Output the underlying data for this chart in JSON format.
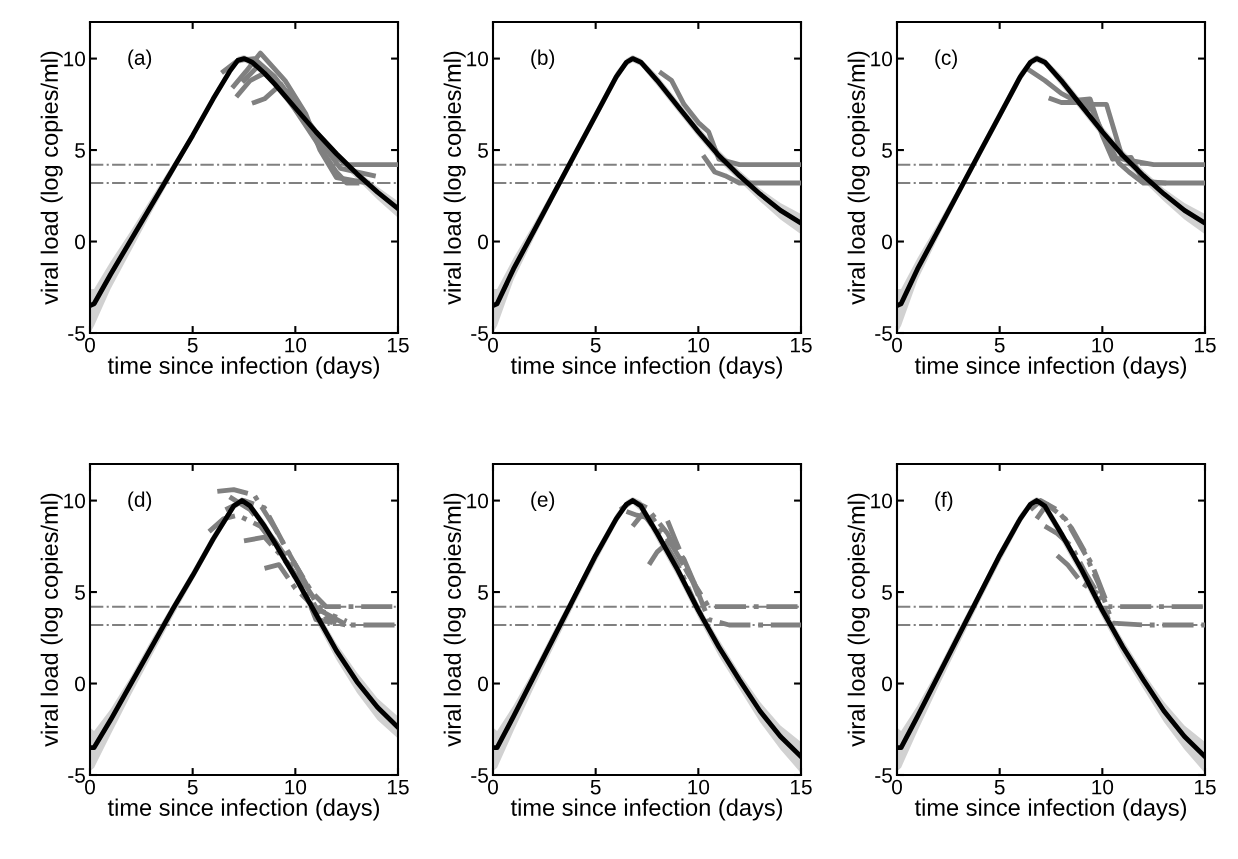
{
  "chart_data": [
    {
      "type": "line",
      "xlabel": "time since infection (days)",
      "ylabel": "viral load (log copies/ml)",
      "annotations": [
        "(a)"
      ],
      "xlim": [
        0,
        15
      ],
      "ylim": [
        -5,
        12
      ],
      "xticks": [
        0,
        5,
        10,
        15
      ],
      "yticks": [
        -5,
        0,
        5,
        10
      ],
      "ref_lines": [
        {
          "axis": "y",
          "value": 4.2,
          "color": "#808080",
          "line_style": "dashdot"
        },
        {
          "axis": "y",
          "value": 3.2,
          "color": "#808080",
          "line_style": "dashdot"
        }
      ],
      "series": [
        {
          "color": "#808080",
          "x": [
            6.5,
            7.2,
            8,
            9,
            10,
            11,
            12,
            12.5,
            15
          ],
          "values": [
            9.3,
            9.9,
            10.0,
            9.0,
            7.5,
            6.0,
            4.6,
            4.2,
            4.2
          ]
        },
        {
          "color": "#808080",
          "x": [
            7.5,
            8.2,
            9,
            10,
            11,
            12,
            12.5,
            13
          ],
          "values": [
            8.8,
            9.6,
            8.8,
            7.2,
            5.5,
            3.8,
            3.2,
            3.2
          ]
        },
        {
          "color": "#808080",
          "x": [
            8,
            8.5,
            9.3,
            10,
            10.8,
            11.5
          ],
          "values": [
            7.6,
            7.8,
            8.6,
            7.5,
            6.2,
            5.2
          ]
        },
        {
          "color": "#808080",
          "x": [
            7,
            7.6,
            8.3,
            9.5,
            10.5,
            11.2,
            12,
            13.5
          ],
          "values": [
            8.5,
            9.3,
            10.3,
            8.8,
            7.0,
            5.0,
            3.5,
            3.2
          ]
        },
        {
          "color": "#808080",
          "x": [
            7.2,
            7.8,
            8.5,
            9.8,
            11,
            12.2,
            13.8
          ],
          "values": [
            8.0,
            8.8,
            9.2,
            8.0,
            5.8,
            4.0,
            3.6
          ]
        },
        {
          "color": "#000000",
          "x": [
            0,
            0.2,
            1,
            2,
            3,
            4,
            5,
            6,
            6.8,
            7.2,
            7.5,
            7.9,
            8.5,
            9,
            10,
            11,
            12,
            13,
            14,
            15
          ],
          "values": [
            -3.5,
            -3.4,
            -1.8,
            0.1,
            2.0,
            3.9,
            5.8,
            7.8,
            9.3,
            9.9,
            10,
            9.8,
            9.2,
            8.6,
            7.3,
            6.0,
            4.8,
            3.7,
            2.7,
            1.8
          ],
          "lower": [
            -5,
            -4.6,
            -2.6,
            -0.5,
            1.6,
            3.6,
            5.6,
            7.6,
            9.1,
            9.7,
            9.8,
            9.6,
            9.0,
            8.4,
            7.0,
            5.7,
            4.5,
            3.4,
            2.3,
            1.3
          ],
          "upper": [
            -2.6,
            -2.6,
            -1.1,
            0.6,
            2.4,
            4.2,
            6.0,
            8.0,
            9.5,
            10.1,
            10.2,
            10.0,
            9.4,
            8.8,
            7.5,
            6.2,
            5.0,
            3.9,
            3.0,
            2.2
          ]
        }
      ]
    },
    {
      "type": "line",
      "xlabel": "time since infection (days)",
      "ylabel": "viral load (log copies/ml)",
      "annotations": [
        "(b)"
      ],
      "xlim": [
        0,
        15
      ],
      "ylim": [
        -5,
        12
      ],
      "xticks": [
        0,
        5,
        10,
        15
      ],
      "yticks": [
        -5,
        0,
        5,
        10
      ],
      "ref_lines": [
        {
          "axis": "y",
          "value": 4.2,
          "color": "#808080",
          "line_style": "dashdot"
        },
        {
          "axis": "y",
          "value": 3.2,
          "color": "#808080",
          "line_style": "dashdot"
        }
      ],
      "series": [
        {
          "color": "#808080",
          "x": [
            8.2,
            8.7,
            9.3,
            10,
            10.5,
            11,
            12,
            15
          ],
          "values": [
            9.2,
            8.8,
            7.5,
            6.5,
            6.0,
            4.5,
            4.2,
            4.2
          ]
        },
        {
          "color": "#808080",
          "x": [
            10.3,
            10.8,
            11.3,
            12,
            13,
            15
          ],
          "values": [
            4.6,
            3.8,
            3.6,
            3.2,
            3.2,
            3.2
          ]
        },
        {
          "color": "#000000",
          "x": [
            0,
            0.2,
            1,
            2,
            3,
            4,
            5,
            6,
            6.5,
            6.8,
            7.2,
            8,
            9,
            10,
            11,
            12,
            13,
            14,
            15
          ],
          "values": [
            -3.5,
            -3.4,
            -1.5,
            0.6,
            2.7,
            4.8,
            6.9,
            9.0,
            9.8,
            10,
            9.8,
            8.8,
            7.4,
            6.0,
            4.7,
            3.6,
            2.6,
            1.7,
            1.0
          ],
          "lower": [
            -5,
            -4.6,
            -2.1,
            0.2,
            2.4,
            4.5,
            6.6,
            8.7,
            9.6,
            9.8,
            9.6,
            8.5,
            7.1,
            5.7,
            4.4,
            3.3,
            2.2,
            1.2,
            0.4
          ],
          "upper": [
            -2.6,
            -2.6,
            -0.9,
            1.0,
            3.0,
            5.1,
            7.2,
            9.3,
            10.0,
            10.2,
            10.0,
            9.1,
            7.7,
            6.3,
            5.0,
            3.9,
            2.9,
            2.1,
            1.5
          ]
        }
      ]
    },
    {
      "type": "line",
      "xlabel": "time since infection (days)",
      "ylabel": "viral load (log copies/ml)",
      "annotations": [
        "(c)"
      ],
      "xlim": [
        0,
        15
      ],
      "ylim": [
        -5,
        12
      ],
      "xticks": [
        0,
        5,
        10,
        15
      ],
      "yticks": [
        -5,
        0,
        5,
        10
      ],
      "ref_lines": [
        {
          "axis": "y",
          "value": 4.2,
          "color": "#808080",
          "line_style": "dashdot"
        },
        {
          "axis": "y",
          "value": 3.2,
          "color": "#808080",
          "line_style": "dashdot"
        }
      ],
      "series": [
        {
          "color": "#808080",
          "x": [
            6.4,
            7.2,
            8,
            8.5,
            9.5,
            10.2,
            11,
            12.5,
            15
          ],
          "values": [
            9.4,
            8.8,
            8.1,
            7.8,
            7.5,
            7.5,
            4.5,
            4.2,
            4.2
          ]
        },
        {
          "color": "#808080",
          "x": [
            7.5,
            8,
            8.8,
            9.5,
            10,
            10.8,
            11.3,
            12,
            13,
            15
          ],
          "values": [
            7.8,
            7.6,
            7.6,
            7.2,
            6.0,
            4.3,
            3.8,
            3.2,
            3.2,
            3.2
          ]
        },
        {
          "color": "#808080",
          "x": [
            8.5,
            9.4,
            10,
            10.5,
            11.4,
            12,
            13
          ],
          "values": [
            7.7,
            7.8,
            5.8,
            4.5,
            4.6,
            3.3,
            3.2
          ]
        },
        {
          "color": "#000000",
          "x": [
            0,
            0.2,
            1,
            2,
            3,
            4,
            5,
            6,
            6.5,
            6.8,
            7.2,
            8,
            9,
            10,
            11,
            12,
            13,
            14,
            15
          ],
          "values": [
            -3.5,
            -3.4,
            -1.5,
            0.6,
            2.7,
            4.8,
            6.9,
            9.0,
            9.8,
            10,
            9.8,
            8.8,
            7.4,
            6.0,
            4.7,
            3.6,
            2.6,
            1.7,
            1.0
          ],
          "lower": [
            -5,
            -4.6,
            -2.1,
            0.2,
            2.4,
            4.5,
            6.6,
            8.7,
            9.6,
            9.8,
            9.6,
            8.5,
            7.1,
            5.7,
            4.4,
            3.3,
            2.2,
            1.2,
            0.4
          ],
          "upper": [
            -2.6,
            -2.6,
            -0.9,
            1.0,
            3.0,
            5.1,
            7.2,
            9.3,
            10.0,
            10.2,
            10.0,
            9.1,
            7.7,
            6.3,
            5.0,
            3.9,
            2.9,
            2.1,
            1.5
          ]
        }
      ]
    },
    {
      "type": "line",
      "xlabel": "time since infection (days)",
      "ylabel": "viral load (log copies/ml)",
      "annotations": [
        "(d)"
      ],
      "xlim": [
        0,
        15
      ],
      "ylim": [
        -5,
        12
      ],
      "xticks": [
        0,
        5,
        10,
        15
      ],
      "yticks": [
        -5,
        0,
        5,
        10
      ],
      "ref_lines": [
        {
          "axis": "y",
          "value": 4.2,
          "color": "#808080",
          "line_style": "dashdot"
        },
        {
          "axis": "y",
          "value": 3.2,
          "color": "#808080",
          "line_style": "dashdot"
        }
      ],
      "series": [
        {
          "color": "#808080",
          "line_style": "dashdot",
          "x": [
            6.2,
            7,
            8,
            9,
            10,
            10.8,
            11.5,
            15
          ],
          "values": [
            10.5,
            10.6,
            10.3,
            8.5,
            6.5,
            5,
            4.2,
            4.2
          ]
        },
        {
          "color": "#808080",
          "line_style": "dashdot",
          "x": [
            6.6,
            7.5,
            8.5,
            9.5,
            10.5,
            11.2,
            12.5,
            15
          ],
          "values": [
            9.5,
            10,
            9.6,
            7.5,
            5.5,
            4,
            3.2,
            3.2
          ]
        },
        {
          "color": "#808080",
          "line_style": "dashdot",
          "x": [
            5.8,
            6.5,
            7.2,
            8.3,
            9.4,
            10.4,
            11,
            12.5
          ],
          "values": [
            8.3,
            9,
            9.2,
            8.6,
            7,
            5.2,
            3.5,
            3.2
          ]
        },
        {
          "color": "#808080",
          "line_style": "dashdot",
          "x": [
            6.8,
            7.8,
            9,
            10,
            11,
            11.5,
            12
          ],
          "values": [
            10.2,
            9.5,
            7.8,
            6.2,
            4.5,
            3.6,
            3.3
          ]
        },
        {
          "color": "#808080",
          "line_style": "dashdot",
          "x": [
            7.5,
            8.5,
            9.3,
            10.3,
            11.2
          ],
          "values": [
            7.8,
            8.0,
            7.0,
            5.5,
            3.8
          ]
        },
        {
          "color": "#808080",
          "line_style": "dashdot",
          "x": [
            8.5,
            9.2,
            10,
            11,
            12.5
          ],
          "values": [
            6.3,
            6.5,
            5.2,
            4.1,
            3.4
          ]
        },
        {
          "color": "#000000",
          "x": [
            0,
            0.2,
            1,
            2,
            3,
            4,
            5,
            6,
            7,
            7.4,
            7.8,
            8.5,
            9,
            10,
            11,
            12,
            13,
            14,
            15
          ],
          "values": [
            -3.5,
            -3.5,
            -2,
            0,
            2,
            4,
            5.9,
            7.9,
            9.7,
            10,
            9.7,
            8.6,
            7.7,
            5.8,
            3.8,
            1.8,
            0.1,
            -1.3,
            -2.4
          ],
          "lower": [
            -4.8,
            -4.6,
            -2.8,
            -0.6,
            1.5,
            3.6,
            5.6,
            7.6,
            9.5,
            9.8,
            9.5,
            8.3,
            7.4,
            5.5,
            3.4,
            1.3,
            -0.5,
            -2.0,
            -3.0
          ],
          "upper": [
            -2.4,
            -2.6,
            -1.4,
            0.4,
            2.4,
            4.3,
            6.2,
            8.2,
            9.9,
            10.2,
            9.9,
            8.9,
            8.0,
            6.1,
            4.1,
            2.2,
            0.6,
            -0.8,
            -1.8
          ]
        }
      ]
    },
    {
      "type": "line",
      "xlabel": "time since infection (days)",
      "ylabel": "viral load (log copies/ml)",
      "annotations": [
        "(e)"
      ],
      "xlim": [
        0,
        15
      ],
      "ylim": [
        -5,
        12
      ],
      "xticks": [
        0,
        5,
        10,
        15
      ],
      "yticks": [
        -5,
        0,
        5,
        10
      ],
      "ref_lines": [
        {
          "axis": "y",
          "value": 4.2,
          "color": "#808080",
          "line_style": "dashdot"
        },
        {
          "axis": "y",
          "value": 3.2,
          "color": "#808080",
          "line_style": "dashdot"
        }
      ],
      "series": [
        {
          "color": "#808080",
          "line_style": "dashdot",
          "x": [
            6.2,
            6.8,
            7.5,
            8.5,
            9.5,
            10.5,
            12,
            15
          ],
          "values": [
            9.5,
            10,
            9.6,
            8.2,
            6.0,
            4.2,
            4.2,
            4.2
          ]
        },
        {
          "color": "#808080",
          "line_style": "dashdot",
          "x": [
            6.5,
            7,
            7.8,
            8.8,
            9.8,
            10.5,
            11.5,
            15
          ],
          "values": [
            9.4,
            9.2,
            9.0,
            7.4,
            5.5,
            3.5,
            3.2,
            3.2
          ]
        },
        {
          "color": "#808080",
          "line_style": "dashdot",
          "x": [
            6.8,
            7.3,
            8.2,
            9,
            9.8,
            10.3
          ],
          "values": [
            8.6,
            9.3,
            8.0,
            6.5,
            4.5,
            3.4
          ]
        },
        {
          "color": "#808080",
          "line_style": "dashdot",
          "x": [
            7.6,
            8,
            8.6,
            9.3,
            9.8
          ],
          "values": [
            6.5,
            7.2,
            7.8,
            6.8,
            5.5
          ]
        },
        {
          "color": "#808080",
          "line_style": "dashdot",
          "x": [
            8.5,
            8.9,
            9.5,
            10
          ],
          "values": [
            8.9,
            7.8,
            6.2,
            4.8
          ]
        },
        {
          "color": "#000000",
          "x": [
            0,
            0.2,
            1,
            2,
            3,
            4,
            5,
            6,
            6.5,
            6.8,
            7.2,
            8,
            9,
            10,
            11,
            12,
            13,
            14,
            15
          ],
          "values": [
            -3.5,
            -3.5,
            -1.8,
            0.4,
            2.6,
            4.8,
            7.0,
            9.0,
            9.8,
            10,
            9.7,
            8.2,
            6.2,
            4.0,
            2.0,
            0.2,
            -1.5,
            -2.9,
            -4.0
          ],
          "lower": [
            -4.8,
            -4.6,
            -2.6,
            -0.2,
            2.1,
            4.4,
            6.6,
            8.7,
            9.6,
            9.8,
            9.4,
            7.8,
            5.8,
            3.6,
            1.5,
            -0.3,
            -2.1,
            -3.6,
            -4.9
          ],
          "upper": [
            -2.4,
            -2.6,
            -1.2,
            0.8,
            3.0,
            5.1,
            7.3,
            9.3,
            10.0,
            10.2,
            10.0,
            8.5,
            6.5,
            4.3,
            2.4,
            0.6,
            -1.0,
            -2.3,
            -3.2
          ]
        }
      ]
    },
    {
      "type": "line",
      "xlabel": "time since infection (days)",
      "ylabel": "viral load (log copies/ml)",
      "annotations": [
        "(f)"
      ],
      "xlim": [
        0,
        15
      ],
      "ylim": [
        -5,
        12
      ],
      "xticks": [
        0,
        5,
        10,
        15
      ],
      "yticks": [
        -5,
        0,
        5,
        10
      ],
      "ref_lines": [
        {
          "axis": "y",
          "value": 4.2,
          "color": "#808080",
          "line_style": "dashdot"
        },
        {
          "axis": "y",
          "value": 3.2,
          "color": "#808080",
          "line_style": "dashdot"
        }
      ],
      "series": [
        {
          "color": "#808080",
          "line_style": "dashdot",
          "x": [
            6.5,
            7,
            7.8,
            8.5,
            9.5,
            10.3,
            12,
            15
          ],
          "values": [
            9.5,
            10,
            9.5,
            8.5,
            6.5,
            4.2,
            4.2,
            4.2
          ]
        },
        {
          "color": "#808080",
          "line_style": "dashdot",
          "x": [
            6.8,
            7.3,
            8.2,
            9.2,
            9.8,
            10.5,
            12,
            15
          ],
          "values": [
            9.0,
            9.8,
            9.0,
            7.0,
            5.5,
            3.3,
            3.2,
            3.2
          ]
        },
        {
          "color": "#808080",
          "line_style": "dashdot",
          "x": [
            7.2,
            7.8,
            8.5,
            9.2,
            10,
            10.3
          ],
          "values": [
            8.6,
            8.2,
            7.5,
            6.0,
            4.5,
            3.5
          ]
        },
        {
          "color": "#808080",
          "line_style": "dashdot",
          "x": [
            7.8,
            8.3,
            9,
            9.8
          ],
          "values": [
            7.0,
            6.5,
            5.5,
            4.9
          ]
        },
        {
          "color": "#000000",
          "x": [
            0,
            0.2,
            1,
            2,
            3,
            4,
            5,
            6,
            6.5,
            6.8,
            7.2,
            8,
            9,
            10,
            11,
            12,
            13,
            14,
            15
          ],
          "values": [
            -3.5,
            -3.5,
            -1.8,
            0.4,
            2.6,
            4.8,
            7.0,
            9.0,
            9.8,
            10,
            9.7,
            8.2,
            6.2,
            4.0,
            2.0,
            0.2,
            -1.5,
            -2.9,
            -4.0
          ],
          "lower": [
            -4.8,
            -4.6,
            -2.6,
            -0.2,
            2.1,
            4.4,
            6.6,
            8.7,
            9.6,
            9.8,
            9.4,
            7.8,
            5.8,
            3.6,
            1.5,
            -0.3,
            -2.1,
            -3.6,
            -4.9
          ],
          "upper": [
            -2.4,
            -2.6,
            -1.2,
            0.8,
            3.0,
            5.1,
            7.3,
            9.3,
            10.0,
            10.2,
            10.0,
            8.5,
            6.5,
            4.3,
            2.4,
            0.6,
            -1.0,
            -2.3,
            -3.2
          ]
        }
      ]
    }
  ]
}
